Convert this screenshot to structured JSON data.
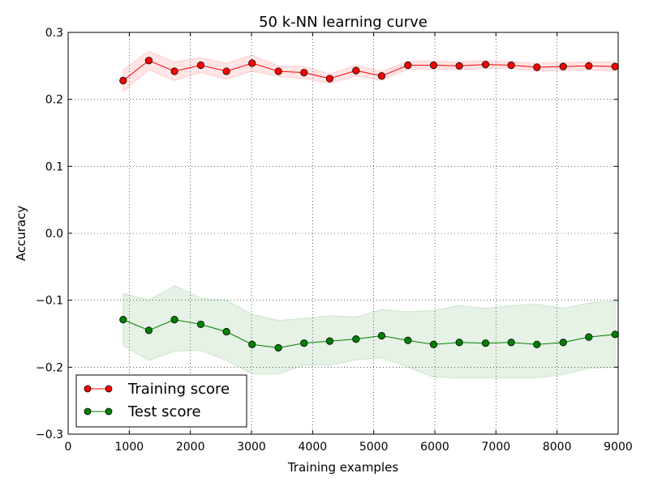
{
  "chart_data": {
    "type": "line",
    "title": "50 k-NN learning curve",
    "xlabel": "Training examples",
    "ylabel": "Accuracy",
    "xlim": [
      0,
      9000
    ],
    "ylim": [
      -0.3,
      0.3
    ],
    "xticks": [
      0,
      1000,
      2000,
      3000,
      4000,
      5000,
      6000,
      7000,
      8000,
      9000
    ],
    "xtick_labels": [
      "0",
      "1000",
      "2000",
      "3000",
      "4000",
      "5000",
      "6000",
      "7000",
      "8000",
      "9000"
    ],
    "yticks": [
      -0.3,
      -0.2,
      -0.1,
      0.0,
      0.1,
      0.2,
      0.3
    ],
    "ytick_labels": [
      "−0.3",
      "−0.2",
      "−0.1",
      "0.0",
      "0.1",
      "0.2",
      "0.3"
    ],
    "grid": true,
    "legend_position": "lower-left",
    "x": [
      900,
      1320,
      1740,
      2170,
      2590,
      3010,
      3440,
      3860,
      4280,
      4710,
      5130,
      5560,
      5980,
      6400,
      6830,
      7250,
      7670,
      8100,
      8520,
      8950
    ],
    "series": [
      {
        "name": "Training score",
        "color": "#ff0000",
        "fill_color": "#ff0000",
        "values": [
          0.228,
          0.258,
          0.242,
          0.251,
          0.242,
          0.254,
          0.242,
          0.24,
          0.231,
          0.243,
          0.235,
          0.251,
          0.251,
          0.25,
          0.252,
          0.251,
          0.248,
          0.249,
          0.25,
          0.249
        ],
        "upper": [
          0.244,
          0.272,
          0.256,
          0.262,
          0.254,
          0.266,
          0.25,
          0.249,
          0.238,
          0.251,
          0.242,
          0.257,
          0.257,
          0.256,
          0.258,
          0.256,
          0.254,
          0.255,
          0.256,
          0.256
        ],
        "lower": [
          0.212,
          0.244,
          0.228,
          0.24,
          0.23,
          0.242,
          0.234,
          0.231,
          0.224,
          0.235,
          0.228,
          0.245,
          0.245,
          0.244,
          0.246,
          0.246,
          0.242,
          0.243,
          0.244,
          0.242
        ]
      },
      {
        "name": "Test score",
        "color": "#008000",
        "fill_color": "#008000",
        "values": [
          -0.129,
          -0.145,
          -0.129,
          -0.136,
          -0.147,
          -0.166,
          -0.171,
          -0.164,
          -0.161,
          -0.158,
          -0.153,
          -0.16,
          -0.166,
          -0.163,
          -0.164,
          -0.163,
          -0.166,
          -0.163,
          -0.155,
          -0.151
        ],
        "upper": [
          -0.09,
          -0.1,
          -0.078,
          -0.097,
          -0.1,
          -0.121,
          -0.13,
          -0.127,
          -0.123,
          -0.125,
          -0.114,
          -0.117,
          -0.115,
          -0.108,
          -0.112,
          -0.108,
          -0.106,
          -0.112,
          -0.104,
          -0.101
        ],
        "lower": [
          -0.168,
          -0.19,
          -0.176,
          -0.175,
          -0.19,
          -0.21,
          -0.21,
          -0.197,
          -0.197,
          -0.189,
          -0.186,
          -0.2,
          -0.215,
          -0.216,
          -0.216,
          -0.216,
          -0.216,
          -0.211,
          -0.202,
          -0.2
        ]
      }
    ]
  }
}
